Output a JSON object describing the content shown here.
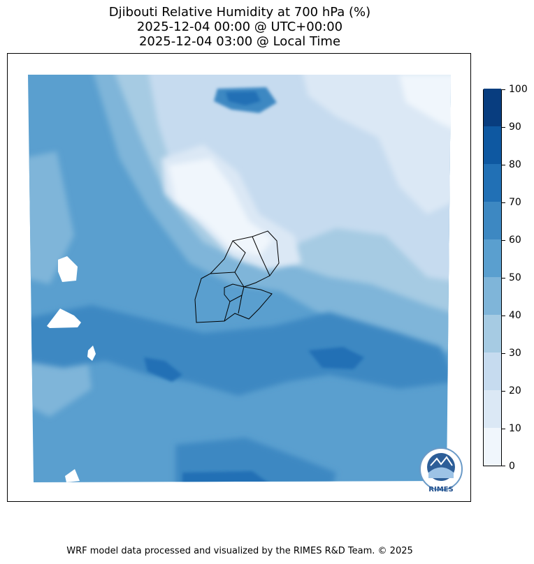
{
  "title": {
    "line1": "Djibouti Relative Humidity at 700 hPa (%)",
    "line2": "2025-12-04 00:00 @ UTC+00:00",
    "line3": "2025-12-04 03:00 @ Local Time"
  },
  "colorbar": {
    "ticks": [
      "0",
      "10",
      "20",
      "30",
      "40",
      "50",
      "60",
      "70",
      "80",
      "90",
      "100"
    ],
    "levels": [
      {
        "range": "0-10",
        "color": "#f0f6fc"
      },
      {
        "range": "10-20",
        "color": "#dbe8f5"
      },
      {
        "range": "20-30",
        "color": "#c6dbef"
      },
      {
        "range": "30-40",
        "color": "#a6cbe3"
      },
      {
        "range": "40-50",
        "color": "#7fb5d9"
      },
      {
        "range": "50-60",
        "color": "#5a9fcf"
      },
      {
        "range": "60-70",
        "color": "#3d88c2"
      },
      {
        "range": "70-80",
        "color": "#2170b5"
      },
      {
        "range": "80-90",
        "color": "#0e58a1"
      },
      {
        "range": "90-100",
        "color": "#083d7f"
      }
    ]
  },
  "logo": {
    "text": "RIMES"
  },
  "footer": "WRF model data processed and visualized by the RIMES R&D Team. © 2025"
}
